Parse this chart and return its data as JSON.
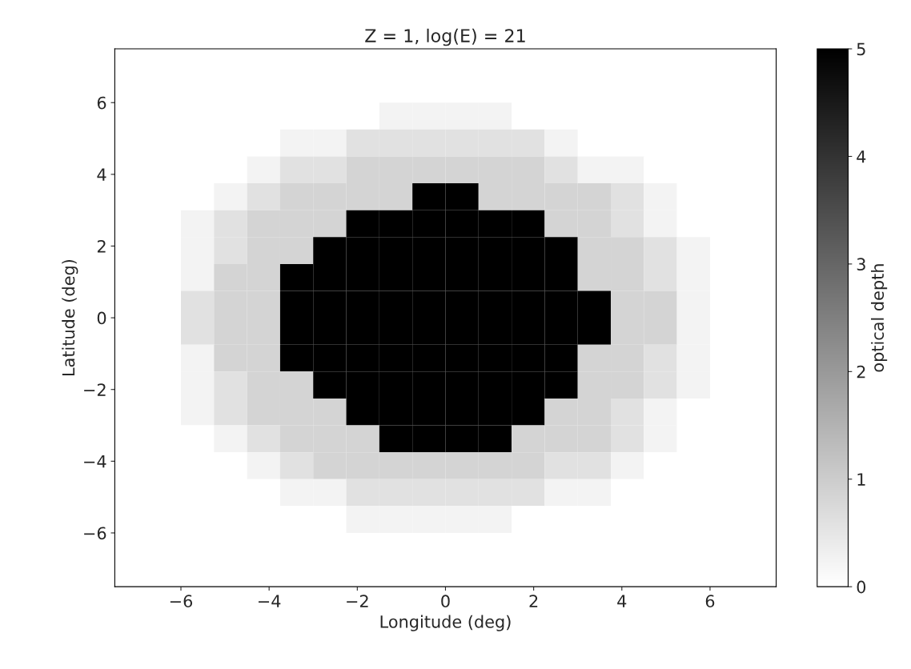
{
  "chart_data": {
    "type": "heatmap",
    "title": "Z = 1, log(E) = 21",
    "xlabel": "Longitude (deg)",
    "ylabel": "Latitude (deg)",
    "clabel": "optical depth",
    "x": [
      -7.125,
      -6.375,
      -5.625,
      -4.875,
      -4.125,
      -3.375,
      -2.625,
      -1.875,
      -1.125,
      -0.375,
      0.375,
      1.125,
      1.875,
      2.625,
      3.375,
      4.125,
      4.875,
      5.625,
      6.375,
      7.125
    ],
    "y": [
      7.125,
      6.375,
      5.625,
      4.875,
      4.125,
      3.375,
      2.625,
      1.875,
      1.125,
      0.375,
      -0.375,
      -1.125,
      -1.875,
      -2.625,
      -3.375,
      -4.125,
      -4.875,
      -5.625,
      -6.375,
      -7.125
    ],
    "cells": [
      [
        0,
        0,
        0,
        0,
        0,
        0,
        0,
        0,
        0,
        0,
        0,
        0,
        0,
        0,
        0,
        0,
        0,
        0,
        0,
        0
      ],
      [
        0,
        0,
        0,
        0,
        0,
        0,
        0,
        0,
        0,
        0,
        0,
        0,
        0,
        0,
        0,
        0,
        0,
        0,
        0,
        0
      ],
      [
        0,
        0,
        0,
        0,
        0,
        0,
        0,
        0,
        0.25,
        0.25,
        0.25,
        0.25,
        0,
        0,
        0,
        0,
        0,
        0,
        0,
        0
      ],
      [
        0,
        0,
        0,
        0,
        0,
        0.25,
        0.25,
        0.6,
        0.6,
        0.6,
        0.6,
        0.6,
        0.6,
        0.25,
        0,
        0,
        0,
        0,
        0,
        0
      ],
      [
        0,
        0,
        0,
        0,
        0.25,
        0.6,
        0.6,
        0.85,
        0.85,
        0.85,
        0.85,
        0.85,
        0.85,
        0.6,
        0.25,
        0.25,
        0,
        0,
        0,
        0
      ],
      [
        0,
        0,
        0,
        0.25,
        0.6,
        0.85,
        0.85,
        0.85,
        0.85,
        5,
        5,
        0.85,
        0.85,
        0.85,
        0.85,
        0.6,
        0.25,
        0,
        0,
        0
      ],
      [
        0,
        0,
        0.25,
        0.6,
        0.85,
        0.85,
        0.85,
        5,
        5,
        5,
        5,
        5,
        5,
        0.85,
        0.85,
        0.6,
        0.25,
        0,
        0,
        0
      ],
      [
        0,
        0,
        0.25,
        0.6,
        0.85,
        0.85,
        5,
        5,
        5,
        5,
        5,
        5,
        5,
        5,
        0.85,
        0.85,
        0.6,
        0.25,
        0,
        0
      ],
      [
        0,
        0,
        0.25,
        0.85,
        0.85,
        5,
        5,
        5,
        5,
        5,
        5,
        5,
        5,
        5,
        0.85,
        0.85,
        0.6,
        0.25,
        0,
        0
      ],
      [
        0,
        0,
        0.6,
        0.85,
        0.85,
        5,
        5,
        5,
        5,
        5,
        5,
        5,
        5,
        5,
        5,
        0.85,
        0.85,
        0.25,
        0,
        0
      ],
      [
        0,
        0,
        0.6,
        0.85,
        0.85,
        5,
        5,
        5,
        5,
        5,
        5,
        5,
        5,
        5,
        5,
        0.85,
        0.85,
        0.25,
        0,
        0
      ],
      [
        0,
        0,
        0.25,
        0.85,
        0.85,
        5,
        5,
        5,
        5,
        5,
        5,
        5,
        5,
        5,
        0.85,
        0.85,
        0.6,
        0.25,
        0,
        0
      ],
      [
        0,
        0,
        0.25,
        0.6,
        0.85,
        0.85,
        5,
        5,
        5,
        5,
        5,
        5,
        5,
        5,
        0.85,
        0.85,
        0.6,
        0.25,
        0,
        0
      ],
      [
        0,
        0,
        0.25,
        0.6,
        0.85,
        0.85,
        0.85,
        5,
        5,
        5,
        5,
        5,
        5,
        0.85,
        0.85,
        0.6,
        0.25,
        0,
        0,
        0
      ],
      [
        0,
        0,
        0,
        0.25,
        0.6,
        0.85,
        0.85,
        0.85,
        5,
        5,
        5,
        5,
        0.85,
        0.85,
        0.85,
        0.6,
        0.25,
        0,
        0,
        0
      ],
      [
        0,
        0,
        0,
        0,
        0.25,
        0.6,
        0.85,
        0.85,
        0.85,
        0.85,
        0.85,
        0.85,
        0.85,
        0.6,
        0.6,
        0.25,
        0,
        0,
        0,
        0
      ],
      [
        0,
        0,
        0,
        0,
        0,
        0.25,
        0.25,
        0.6,
        0.6,
        0.6,
        0.6,
        0.6,
        0.6,
        0.25,
        0.25,
        0,
        0,
        0,
        0,
        0
      ],
      [
        0,
        0,
        0,
        0,
        0,
        0,
        0,
        0.25,
        0.25,
        0.25,
        0.25,
        0.25,
        0,
        0,
        0,
        0,
        0,
        0,
        0,
        0
      ],
      [
        0,
        0,
        0,
        0,
        0,
        0,
        0,
        0,
        0,
        0,
        0,
        0,
        0,
        0,
        0,
        0,
        0,
        0,
        0,
        0
      ],
      [
        0,
        0,
        0,
        0,
        0,
        0,
        0,
        0,
        0,
        0,
        0,
        0,
        0,
        0,
        0,
        0,
        0,
        0,
        0,
        0
      ]
    ],
    "clim": [
      0,
      5
    ],
    "cticks": [
      0,
      1,
      2,
      3,
      4,
      5
    ],
    "xlim": [
      -7.5,
      7.5
    ],
    "ylim": [
      -7.5,
      7.5
    ],
    "xticks": [
      {
        "value": -6,
        "label": "−6"
      },
      {
        "value": -4,
        "label": "−4"
      },
      {
        "value": -2,
        "label": "−2"
      },
      0,
      2,
      4,
      6
    ],
    "yticks": [
      {
        "value": -6,
        "label": "−6"
      },
      {
        "value": -4,
        "label": "−4"
      },
      {
        "value": -2,
        "label": "−2"
      },
      0,
      2,
      4,
      6
    ]
  }
}
